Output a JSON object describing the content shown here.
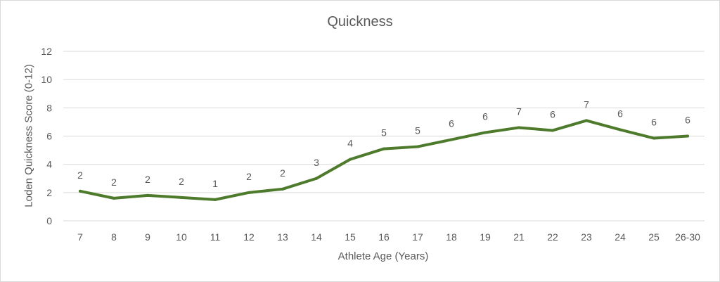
{
  "chart_data": {
    "type": "line",
    "title": "Quickness",
    "xlabel": "Athlete Age (Years)",
    "ylabel": "Loden Quickness Score (0-12)",
    "ylim": [
      0,
      12
    ],
    "yticks": [
      "0",
      "2",
      "4",
      "6",
      "8",
      "10",
      "12"
    ],
    "grid": true,
    "categories": [
      "7",
      "8",
      "9",
      "10",
      "11",
      "12",
      "13",
      "14",
      "15",
      "16",
      "17",
      "18",
      "19",
      "21",
      "22",
      "23",
      "24",
      "25",
      "26-30"
    ],
    "values": [
      2.1,
      1.6,
      1.8,
      1.65,
      1.5,
      2.0,
      2.25,
      3.0,
      4.35,
      5.1,
      5.25,
      5.75,
      6.25,
      6.6,
      6.4,
      7.1,
      6.45,
      5.85,
      6.0
    ],
    "data_labels": [
      "2",
      "2",
      "2",
      "2",
      "1",
      "2",
      "2",
      "3",
      "4",
      "5",
      "5",
      "6",
      "6",
      "7",
      "6",
      "7",
      "6",
      "6",
      "6"
    ],
    "line_color": "#4e7a2c",
    "grid_color": "#d9d9d9"
  }
}
